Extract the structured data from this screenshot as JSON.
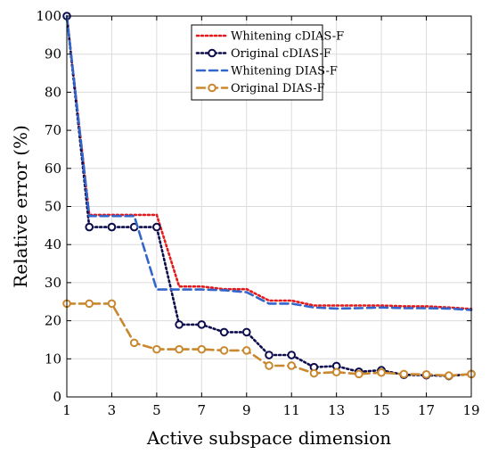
{
  "chart_data": {
    "type": "line",
    "title": "",
    "xlabel": "Active subspace dimension",
    "ylabel": "Relative error (%)",
    "xlim": [
      1,
      19
    ],
    "ylim": [
      0,
      100
    ],
    "xticks": [
      1,
      3,
      5,
      7,
      9,
      11,
      13,
      15,
      17,
      19
    ],
    "yticks": [
      0,
      10,
      20,
      30,
      40,
      50,
      60,
      70,
      80,
      90,
      100
    ],
    "grid": true,
    "legend_position": "top-right",
    "x": [
      1,
      2,
      3,
      4,
      5,
      6,
      7,
      8,
      9,
      10,
      11,
      12,
      13,
      14,
      15,
      16,
      17,
      18,
      19
    ],
    "series": [
      {
        "name": "Whitening cDIAS-F",
        "color": "#e41a1c",
        "style": "dotted",
        "marker": "none",
        "values": [
          100,
          47.8,
          47.8,
          47.8,
          47.8,
          29.0,
          29.0,
          28.3,
          28.3,
          25.3,
          25.3,
          24.0,
          24.0,
          24.0,
          24.0,
          23.8,
          23.8,
          23.5,
          23.1
        ]
      },
      {
        "name": "Original cDIAS-F",
        "color": "#0d0d4d",
        "style": "dotted",
        "marker": "circle",
        "values": [
          100,
          44.6,
          44.6,
          44.6,
          44.6,
          19.0,
          19.0,
          17.0,
          17.0,
          11.0,
          11.0,
          7.8,
          8.1,
          6.6,
          7.0,
          5.8,
          5.7,
          5.5,
          6.0
        ]
      },
      {
        "name": "Whitening DIAS-F",
        "color": "#3366cc",
        "style": "dashed",
        "marker": "none",
        "values": [
          100,
          47.5,
          47.5,
          47.5,
          28.2,
          28.2,
          28.2,
          28.0,
          27.5,
          24.5,
          24.5,
          23.5,
          23.2,
          23.3,
          23.5,
          23.3,
          23.3,
          23.2,
          22.8
        ]
      },
      {
        "name": "Original DIAS-F",
        "color": "#c9882e",
        "style": "dashed",
        "marker": "circle",
        "values": [
          24.5,
          24.5,
          24.5,
          14.2,
          12.5,
          12.5,
          12.5,
          12.2,
          12.2,
          8.2,
          8.2,
          6.2,
          6.5,
          6.0,
          6.4,
          6.0,
          5.9,
          5.6,
          6.0
        ]
      }
    ]
  }
}
